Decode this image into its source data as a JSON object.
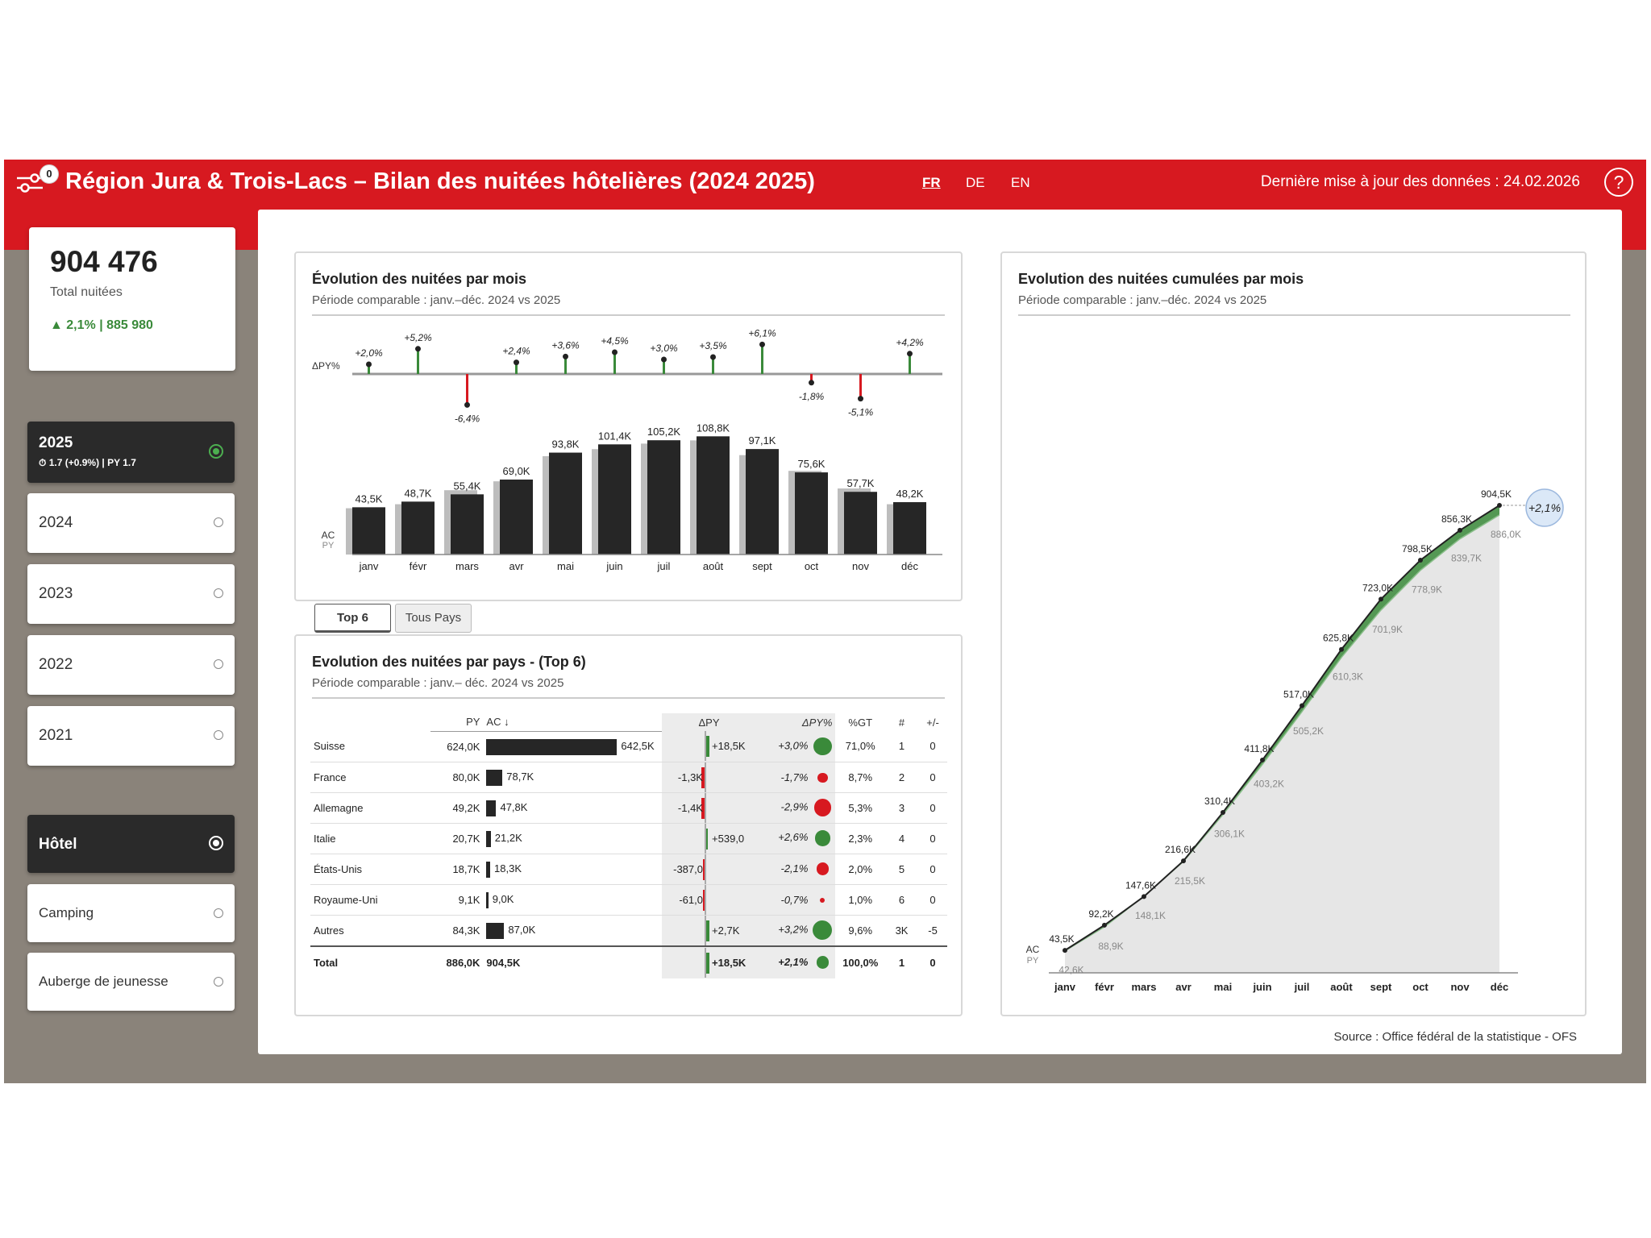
{
  "header": {
    "title": "Région Jura & Trois-Lacs – Bilan des nuitées hôtelières (2024 2025)",
    "filter_count": "0",
    "languages": [
      "FR",
      "DE",
      "EN"
    ],
    "update_text": "Dernière mise à jour des données : 24.02.2026",
    "help_symbol": "?"
  },
  "kpi": {
    "value": "904 476",
    "label": "Total nuitées",
    "delta": "▲ 2,1% | 885 980"
  },
  "years": [
    {
      "label": "2025",
      "sub": "⏱ 1.7 (+0.9%) | PY 1.7",
      "selected": true
    },
    {
      "label": "2024"
    },
    {
      "label": "2023"
    },
    {
      "label": "2022"
    },
    {
      "label": "2021"
    }
  ],
  "accommodation": [
    {
      "label": "Hôtel",
      "selected": true
    },
    {
      "label": "Camping"
    },
    {
      "label": "Auberge de jeunesse"
    }
  ],
  "tabs": [
    "Top 6",
    "Tous Pays"
  ],
  "source": "Source : Office fédéral de la statistique - OFS",
  "colors": {
    "brand_red": "#d71920",
    "positive": "#3a8a3a",
    "negative": "#d71920",
    "ac_bar": "#262626",
    "py_bar": "#bdbdbd"
  },
  "monthly": {
    "title": "Évolution des nuitées par mois",
    "subtitle": "Période comparable : janv.–déc. 2024 vs 2025",
    "legend_ac": "AC",
    "legend_py": "PY",
    "legend_dpy": "ΔPY%"
  },
  "country": {
    "title": "Evolution des nuitées par pays - (Top 6)",
    "subtitle": "Période comparable : janv.– déc. 2024 vs 2025",
    "headers": [
      "PY",
      "AC ↓",
      "ΔPY",
      "ΔPY%",
      "%GT",
      "#",
      "+/-"
    ],
    "rows": [
      {
        "name": "Suisse",
        "py": "624,0K",
        "ac": "642,5K",
        "ac_value": 642.5,
        "dpy": "+18,5K",
        "dpy_value": 18.5,
        "dpyp": "+3,0%",
        "dpyp_value": 3.0,
        "gt": "71,0%",
        "rank": "1",
        "pm": "0"
      },
      {
        "name": "France",
        "py": "80,0K",
        "ac": "78,7K",
        "ac_value": 78.7,
        "dpy": "-1,3K",
        "dpy_value": -1.3,
        "dpyp": "-1,7%",
        "dpyp_value": -1.7,
        "gt": "8,7%",
        "rank": "2",
        "pm": "0"
      },
      {
        "name": "Allemagne",
        "py": "49,2K",
        "ac": "47,8K",
        "ac_value": 47.8,
        "dpy": "-1,4K",
        "dpy_value": -1.4,
        "dpyp": "-2,9%",
        "dpyp_value": -2.9,
        "gt": "5,3%",
        "rank": "3",
        "pm": "0"
      },
      {
        "name": "Italie",
        "py": "20,7K",
        "ac": "21,2K",
        "ac_value": 21.2,
        "dpy": "+539,0",
        "dpy_value": 0.539,
        "dpyp": "+2,6%",
        "dpyp_value": 2.6,
        "gt": "2,3%",
        "rank": "4",
        "pm": "0"
      },
      {
        "name": "États-Unis",
        "py": "18,7K",
        "ac": "18,3K",
        "ac_value": 18.3,
        "dpy": "-387,0",
        "dpy_value": -0.387,
        "dpyp": "-2,1%",
        "dpyp_value": -2.1,
        "gt": "2,0%",
        "rank": "5",
        "pm": "0"
      },
      {
        "name": "Royaume-Uni",
        "py": "9,1K",
        "ac": "9,0K",
        "ac_value": 9.0,
        "dpy": "-61,0",
        "dpy_value": -0.061,
        "dpyp": "-0,7%",
        "dpyp_value": -0.7,
        "gt": "1,0%",
        "rank": "6",
        "pm": "0"
      },
      {
        "name": "Autres",
        "py": "84,3K",
        "ac": "87,0K",
        "ac_value": 87.0,
        "dpy": "+2,7K",
        "dpy_value": 2.7,
        "dpyp": "+3,2%",
        "dpyp_value": 3.2,
        "gt": "9,6%",
        "rank": "3K",
        "pm": "-5"
      }
    ],
    "total": {
      "name": "Total",
      "py": "886,0K",
      "ac": "904,5K",
      "dpy": "+18,5K",
      "dpy_value": 18.5,
      "dpyp": "+2,1%",
      "dpyp_value": 2.1,
      "gt": "100,0%",
      "rank": "1",
      "pm": "0"
    }
  },
  "cumul": {
    "title": "Evolution des nuitées cumulées par mois",
    "subtitle": "Période comparable : janv.–déc. 2024 vs 2025",
    "legend_ac": "AC",
    "legend_py": "PY",
    "end_delta": "+2,1%"
  },
  "chart_data": [
    {
      "type": "bar",
      "categories": [
        "janv",
        "févr",
        "mars",
        "avr",
        "mai",
        "juin",
        "juil",
        "août",
        "sept",
        "oct",
        "nov",
        "déc"
      ],
      "series": [
        {
          "name": "AC",
          "values": [
            43.5,
            48.7,
            55.4,
            69.0,
            93.8,
            101.4,
            105.2,
            108.8,
            97.1,
            75.6,
            57.7,
            48.2
          ]
        },
        {
          "name": "PY",
          "values": [
            42.6,
            46.3,
            59.2,
            67.4,
            90.5,
            97.0,
            102.1,
            105.1,
            91.5,
            77.0,
            60.8,
            46.3
          ]
        }
      ],
      "labels": [
        "43,5K",
        "48,7K",
        "55,4K",
        "69,0K",
        "93,8K",
        "101,4K",
        "105,2K",
        "108,8K",
        "97,1K",
        "75,6K",
        "57,7K",
        "48,2K"
      ],
      "delta_pct": [
        2.0,
        5.2,
        -6.4,
        2.4,
        3.6,
        4.5,
        3.0,
        3.5,
        6.1,
        -1.8,
        -5.1,
        4.2
      ],
      "delta_labels": [
        "+2,0%",
        "+5,2%",
        "-6,4%",
        "+2,4%",
        "+3,6%",
        "+4,5%",
        "+3,0%",
        "+3,5%",
        "+6,1%",
        "-1,8%",
        "-5,1%",
        "+4,2%"
      ],
      "ylim": [
        0,
        115
      ]
    },
    {
      "type": "line",
      "x": [
        "janv",
        "févr",
        "mars",
        "avr",
        "mai",
        "juin",
        "juil",
        "août",
        "sept",
        "oct",
        "nov",
        "déc"
      ],
      "series": [
        {
          "name": "AC",
          "values": [
            43.5,
            92.2,
            147.6,
            216.6,
            310.4,
            411.8,
            517.0,
            625.8,
            723.0,
            798.5,
            856.3,
            904.5
          ],
          "labels": [
            "43,5K",
            "92,2K",
            "147,6K",
            "216,6K",
            "310,4K",
            "411,8K",
            "517,0K",
            "625,8K",
            "723,0K",
            "798,5K",
            "856,3K",
            "904,5K"
          ]
        },
        {
          "name": "PY",
          "values": [
            42.6,
            88.9,
            148.1,
            215.5,
            306.1,
            403.2,
            505.2,
            610.3,
            701.9,
            778.9,
            839.7,
            886.0
          ],
          "labels": [
            "42,6K",
            "88,9K",
            "148,1K",
            "215,5K",
            "306,1K",
            "403,2K",
            "505,2K",
            "610,3K",
            "701,9K",
            "778,9K",
            "839,7K",
            "886,0K"
          ]
        }
      ],
      "ylim": [
        0,
        950
      ]
    }
  ]
}
